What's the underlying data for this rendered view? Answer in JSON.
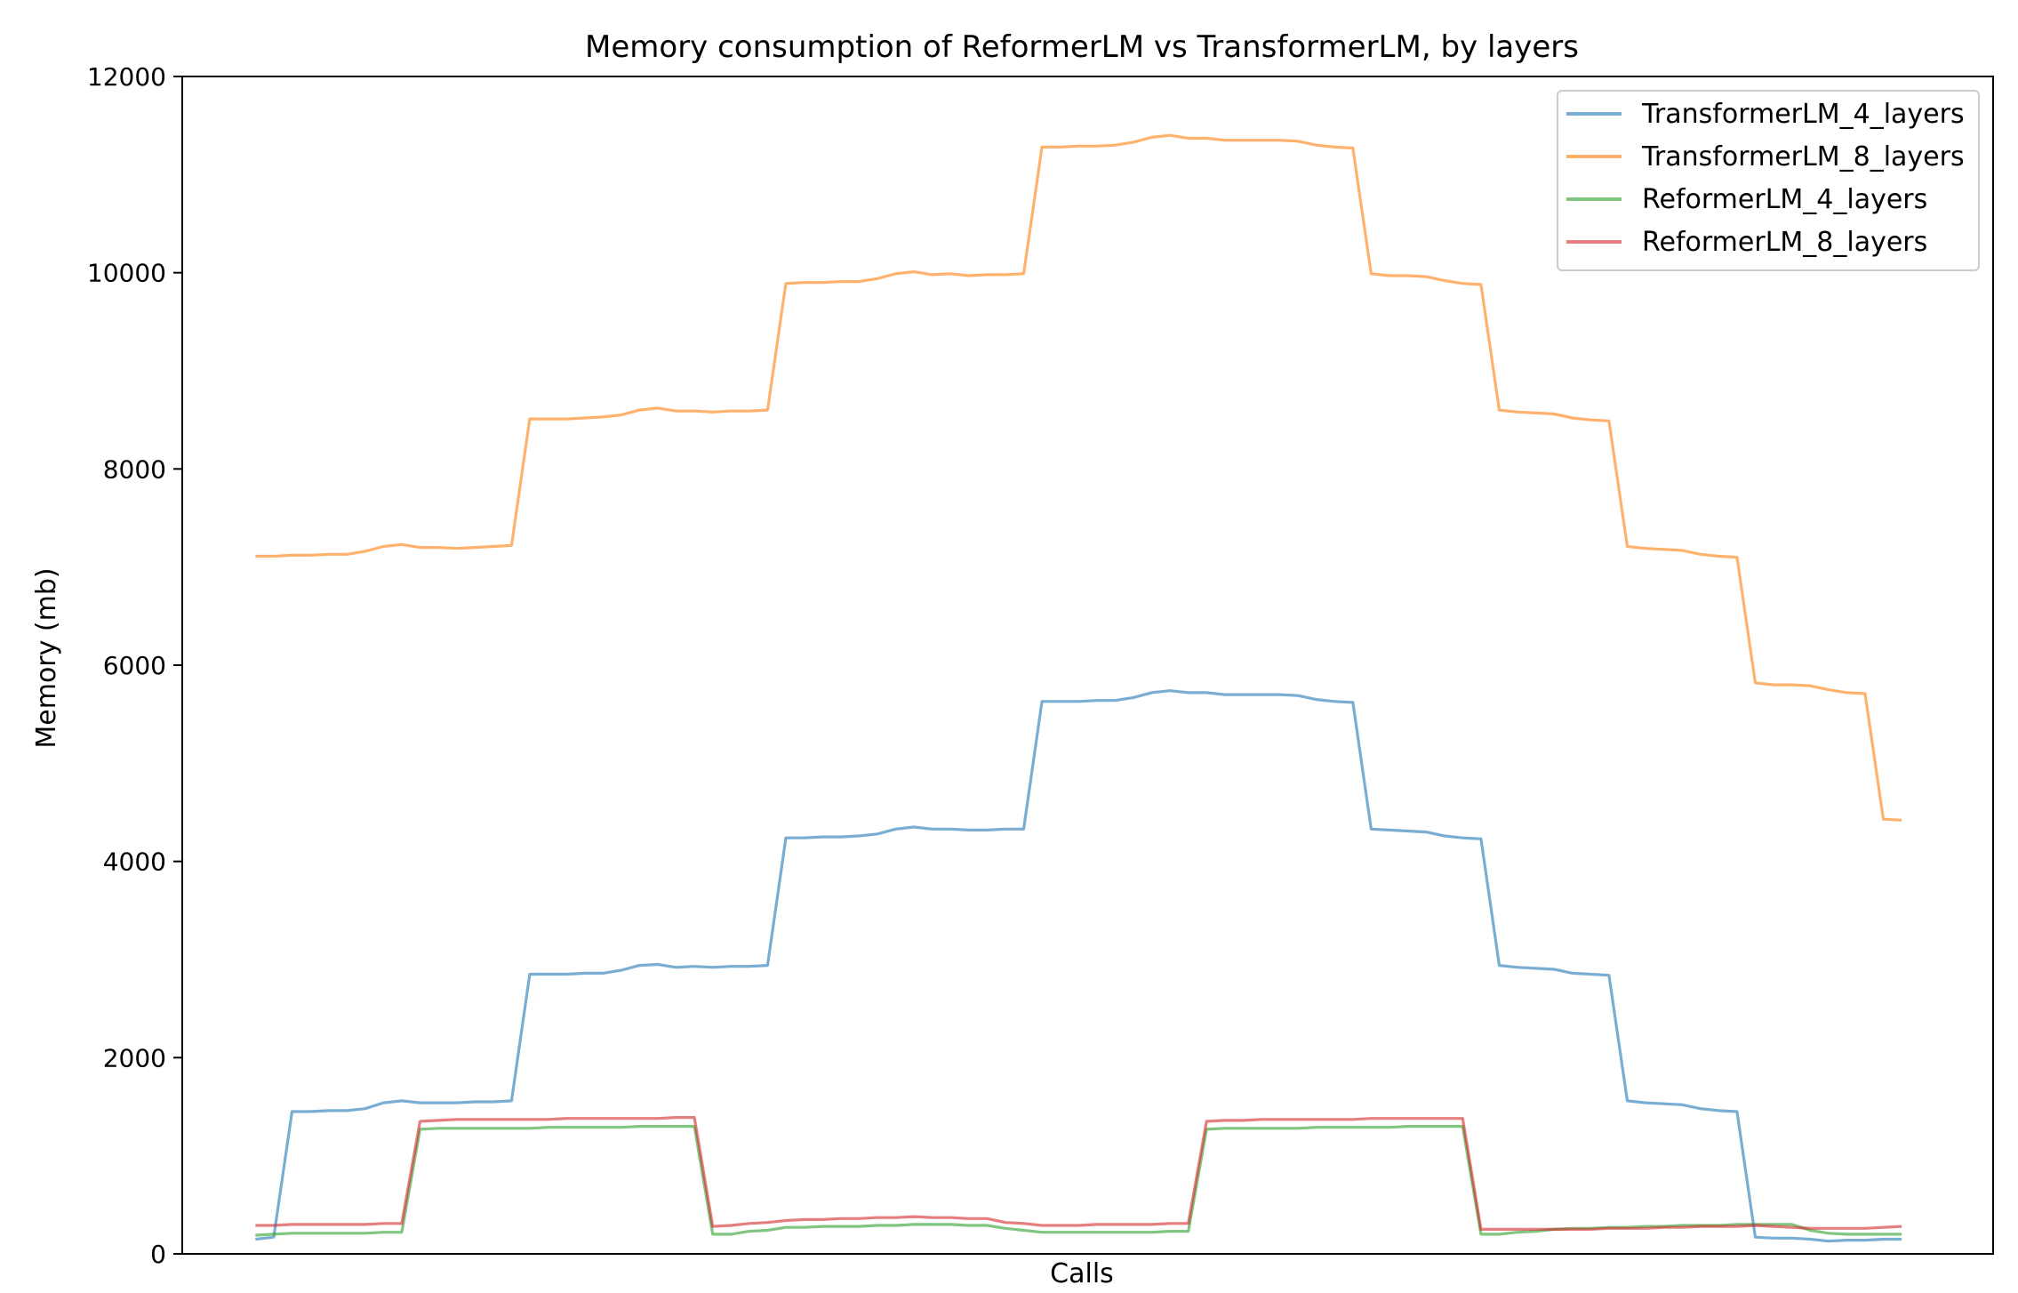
{
  "chart_data": {
    "type": "line",
    "title": "Memory consumption of ReformerLM vs TransformerLM, by layers",
    "xlabel": "Calls",
    "ylabel": "Memory (mb)",
    "xlim": [
      -4,
      95
    ],
    "ylim": [
      0,
      12000
    ],
    "yticks": [
      0,
      2000,
      4000,
      6000,
      8000,
      10000,
      12000
    ],
    "grid": false,
    "legend_position": "top-right",
    "x": [
      0,
      1,
      2,
      3,
      4,
      5,
      6,
      7,
      8,
      9,
      10,
      11,
      12,
      13,
      14,
      15,
      16,
      17,
      18,
      19,
      20,
      21,
      22,
      23,
      24,
      25,
      26,
      27,
      28,
      29,
      30,
      31,
      32,
      33,
      34,
      35,
      36,
      37,
      38,
      39,
      40,
      41,
      42,
      43,
      44,
      45,
      46,
      47,
      48,
      49,
      50,
      51,
      52,
      53,
      54,
      55,
      56,
      57,
      58,
      59,
      60,
      61,
      62,
      63,
      64,
      65,
      66,
      67,
      68,
      69,
      70,
      71,
      72,
      73,
      74,
      75,
      76,
      77,
      78,
      79,
      80,
      81,
      82,
      83,
      84,
      85,
      86,
      87,
      88,
      89,
      90
    ],
    "series": [
      {
        "name": "TransformerLM_4_layers",
        "color": "#1f77b4",
        "values": [
          150,
          170,
          1450,
          1450,
          1460,
          1460,
          1480,
          1540,
          1560,
          1540,
          1540,
          1540,
          1550,
          1550,
          1560,
          2850,
          2850,
          2850,
          2860,
          2860,
          2890,
          2940,
          2950,
          2920,
          2930,
          2920,
          2930,
          2930,
          2940,
          4240,
          4240,
          4250,
          4250,
          4260,
          4280,
          4330,
          4350,
          4330,
          4330,
          4320,
          4320,
          4330,
          4330,
          5630,
          5630,
          5630,
          5640,
          5640,
          5670,
          5720,
          5740,
          5720,
          5720,
          5700,
          5700,
          5700,
          5700,
          5690,
          5650,
          5630,
          5620,
          4330,
          4320,
          4310,
          4300,
          4260,
          4240,
          4230,
          2940,
          2920,
          2910,
          2900,
          2860,
          2850,
          2840,
          1560,
          1540,
          1530,
          1520,
          1480,
          1460,
          1450,
          170,
          160,
          160,
          150,
          130,
          140,
          140,
          150,
          150
        ]
      },
      {
        "name": "TransformerLM_8_layers",
        "color": "#ff7f0e",
        "values": [
          7110,
          7110,
          7120,
          7120,
          7130,
          7130,
          7160,
          7210,
          7230,
          7200,
          7200,
          7190,
          7200,
          7210,
          7220,
          8510,
          8510,
          8510,
          8520,
          8530,
          8550,
          8600,
          8620,
          8590,
          8590,
          8580,
          8590,
          8590,
          8600,
          9890,
          9900,
          9900,
          9910,
          9910,
          9940,
          9990,
          10010,
          9980,
          9990,
          9970,
          9980,
          9980,
          9990,
          11280,
          11280,
          11290,
          11290,
          11300,
          11330,
          11380,
          11400,
          11370,
          11370,
          11350,
          11350,
          11350,
          11350,
          11340,
          11300,
          11280,
          11270,
          9990,
          9970,
          9970,
          9960,
          9920,
          9890,
          9880,
          8600,
          8580,
          8570,
          8560,
          8520,
          8500,
          8490,
          7210,
          7190,
          7180,
          7170,
          7130,
          7110,
          7100,
          5820,
          5800,
          5800,
          5790,
          5750,
          5720,
          5710,
          4430,
          4420
        ]
      },
      {
        "name": "ReformerLM_4_layers",
        "color": "#2ca02c",
        "values": [
          190,
          200,
          210,
          210,
          210,
          210,
          210,
          220,
          220,
          1270,
          1280,
          1280,
          1280,
          1280,
          1280,
          1280,
          1290,
          1290,
          1290,
          1290,
          1290,
          1300,
          1300,
          1300,
          1300,
          200,
          200,
          230,
          240,
          270,
          270,
          280,
          280,
          280,
          290,
          290,
          300,
          300,
          300,
          290,
          290,
          260,
          240,
          220,
          220,
          220,
          220,
          220,
          220,
          220,
          230,
          230,
          1270,
          1280,
          1280,
          1280,
          1280,
          1280,
          1290,
          1290,
          1290,
          1290,
          1290,
          1300,
          1300,
          1300,
          1300,
          200,
          200,
          220,
          230,
          250,
          260,
          260,
          270,
          270,
          280,
          280,
          290,
          290,
          290,
          300,
          300,
          300,
          300,
          240,
          210,
          200,
          200,
          200,
          200
        ]
      },
      {
        "name": "ReformerLM_8_layers",
        "color": "#d62728",
        "values": [
          290,
          290,
          300,
          300,
          300,
          300,
          300,
          310,
          310,
          1350,
          1360,
          1370,
          1370,
          1370,
          1370,
          1370,
          1370,
          1380,
          1380,
          1380,
          1380,
          1380,
          1380,
          1390,
          1390,
          280,
          290,
          310,
          320,
          340,
          350,
          350,
          360,
          360,
          370,
          370,
          380,
          370,
          370,
          360,
          360,
          320,
          310,
          290,
          290,
          290,
          300,
          300,
          300,
          300,
          310,
          310,
          1350,
          1360,
          1360,
          1370,
          1370,
          1370,
          1370,
          1370,
          1370,
          1380,
          1380,
          1380,
          1380,
          1380,
          1380,
          250,
          250,
          250,
          250,
          250,
          250,
          250,
          260,
          260,
          260,
          270,
          270,
          280,
          280,
          280,
          290,
          280,
          270,
          260,
          260,
          260,
          260,
          270,
          280
        ]
      }
    ]
  }
}
